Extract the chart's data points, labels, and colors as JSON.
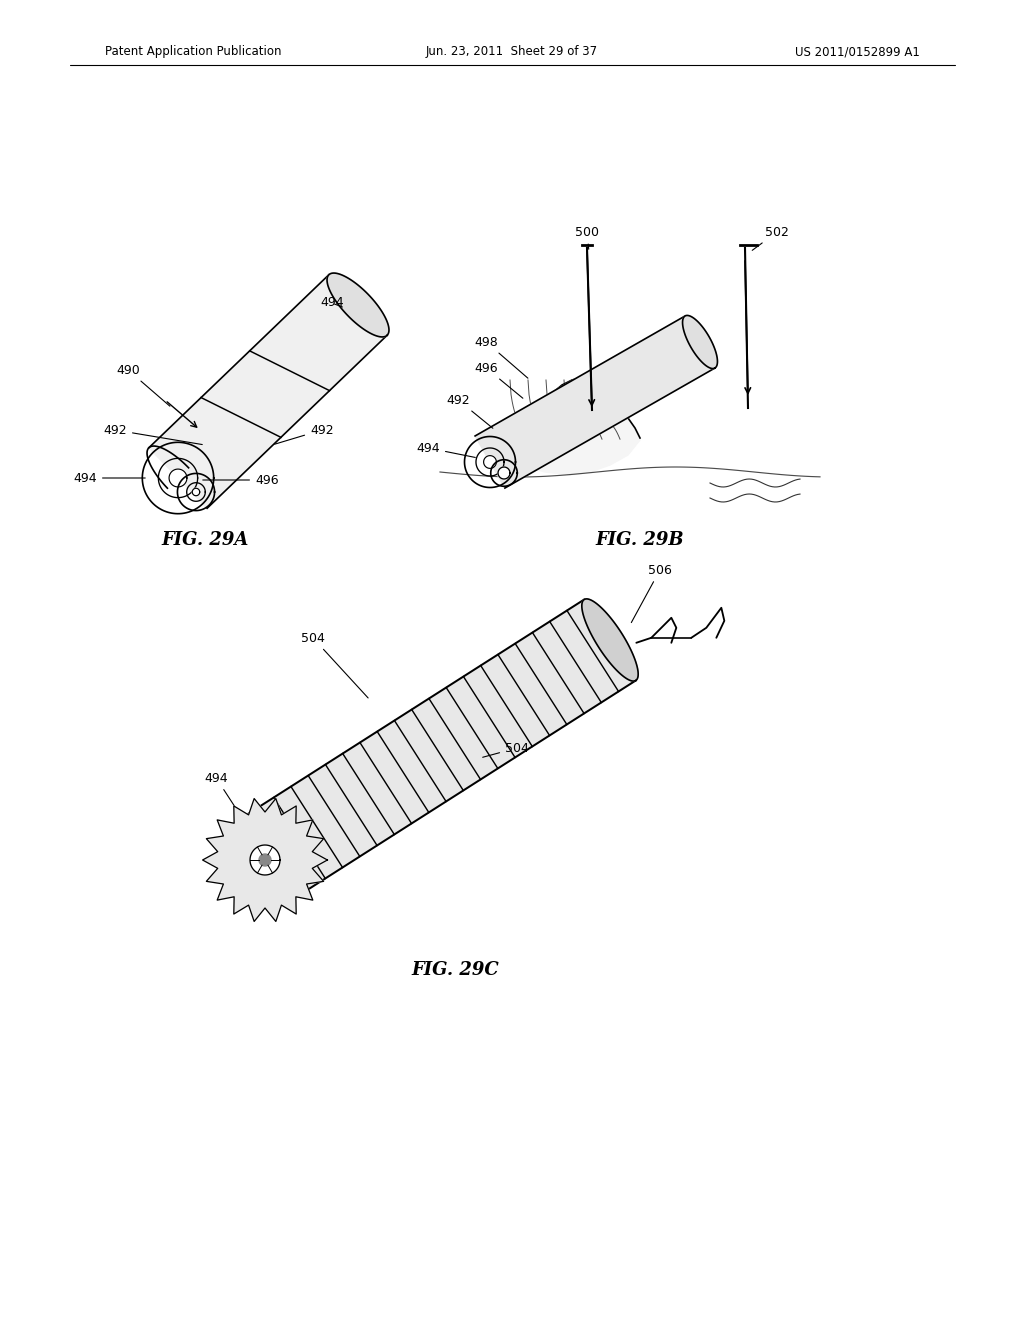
{
  "background_color": "#ffffff",
  "header_left": "Patent Application Publication",
  "header_center": "Jun. 23, 2011  Sheet 29 of 37",
  "header_right": "US 2011/0152899 A1",
  "fig_label_29A": "FIG. 29A",
  "fig_label_29B": "FIG. 29B",
  "fig_label_29C": "FIG. 29C",
  "text_color": "#000000",
  "line_color": "#000000",
  "line_width": 1.2
}
